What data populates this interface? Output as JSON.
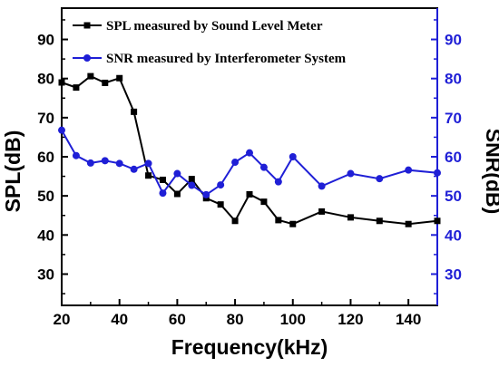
{
  "chart_data": {
    "type": "line",
    "xlabel": "Frequency(kHz)",
    "ylabel_left": "SPL(dB)",
    "ylabel_right": "SNR(dB)",
    "xlim": [
      20,
      150
    ],
    "ylim": [
      22,
      98
    ],
    "xticks": [
      20,
      40,
      60,
      80,
      100,
      120,
      140
    ],
    "yticks": [
      30,
      40,
      50,
      60,
      70,
      80,
      90
    ],
    "legend_position": "top-right",
    "grid": false,
    "series": [
      {
        "name": "SPL measured by Sound Level Meter",
        "axis": "left",
        "color": "#000000",
        "marker": "square",
        "x": [
          20,
          25,
          30,
          35,
          40,
          45,
          50,
          55,
          60,
          65,
          70,
          75,
          80,
          85,
          90,
          95,
          100,
          110,
          120,
          130,
          140,
          150
        ],
        "y": [
          79,
          77.7,
          80.6,
          78.9,
          80.1,
          71.5,
          55.2,
          54.1,
          50.5,
          54.3,
          49.4,
          47.8,
          43.6,
          50.4,
          48.5,
          43.8,
          42.8,
          46.0,
          44.5,
          43.6,
          42.8,
          43.6
        ]
      },
      {
        "name": "SNR measured by Interferometer System",
        "axis": "right",
        "color": "#1f1fd6",
        "marker": "circle",
        "x": [
          20,
          25,
          30,
          35,
          40,
          45,
          50,
          55,
          60,
          65,
          70,
          75,
          80,
          85,
          90,
          95,
          100,
          110,
          120,
          130,
          140,
          150
        ],
        "y": [
          66.8,
          60.3,
          58.4,
          59.0,
          58.3,
          56.8,
          58.3,
          50.7,
          55.7,
          52.7,
          50.3,
          52.8,
          58.6,
          61.0,
          57.3,
          53.6,
          60.0,
          52.5,
          55.7,
          54.4,
          56.6,
          55.9
        ]
      }
    ]
  }
}
